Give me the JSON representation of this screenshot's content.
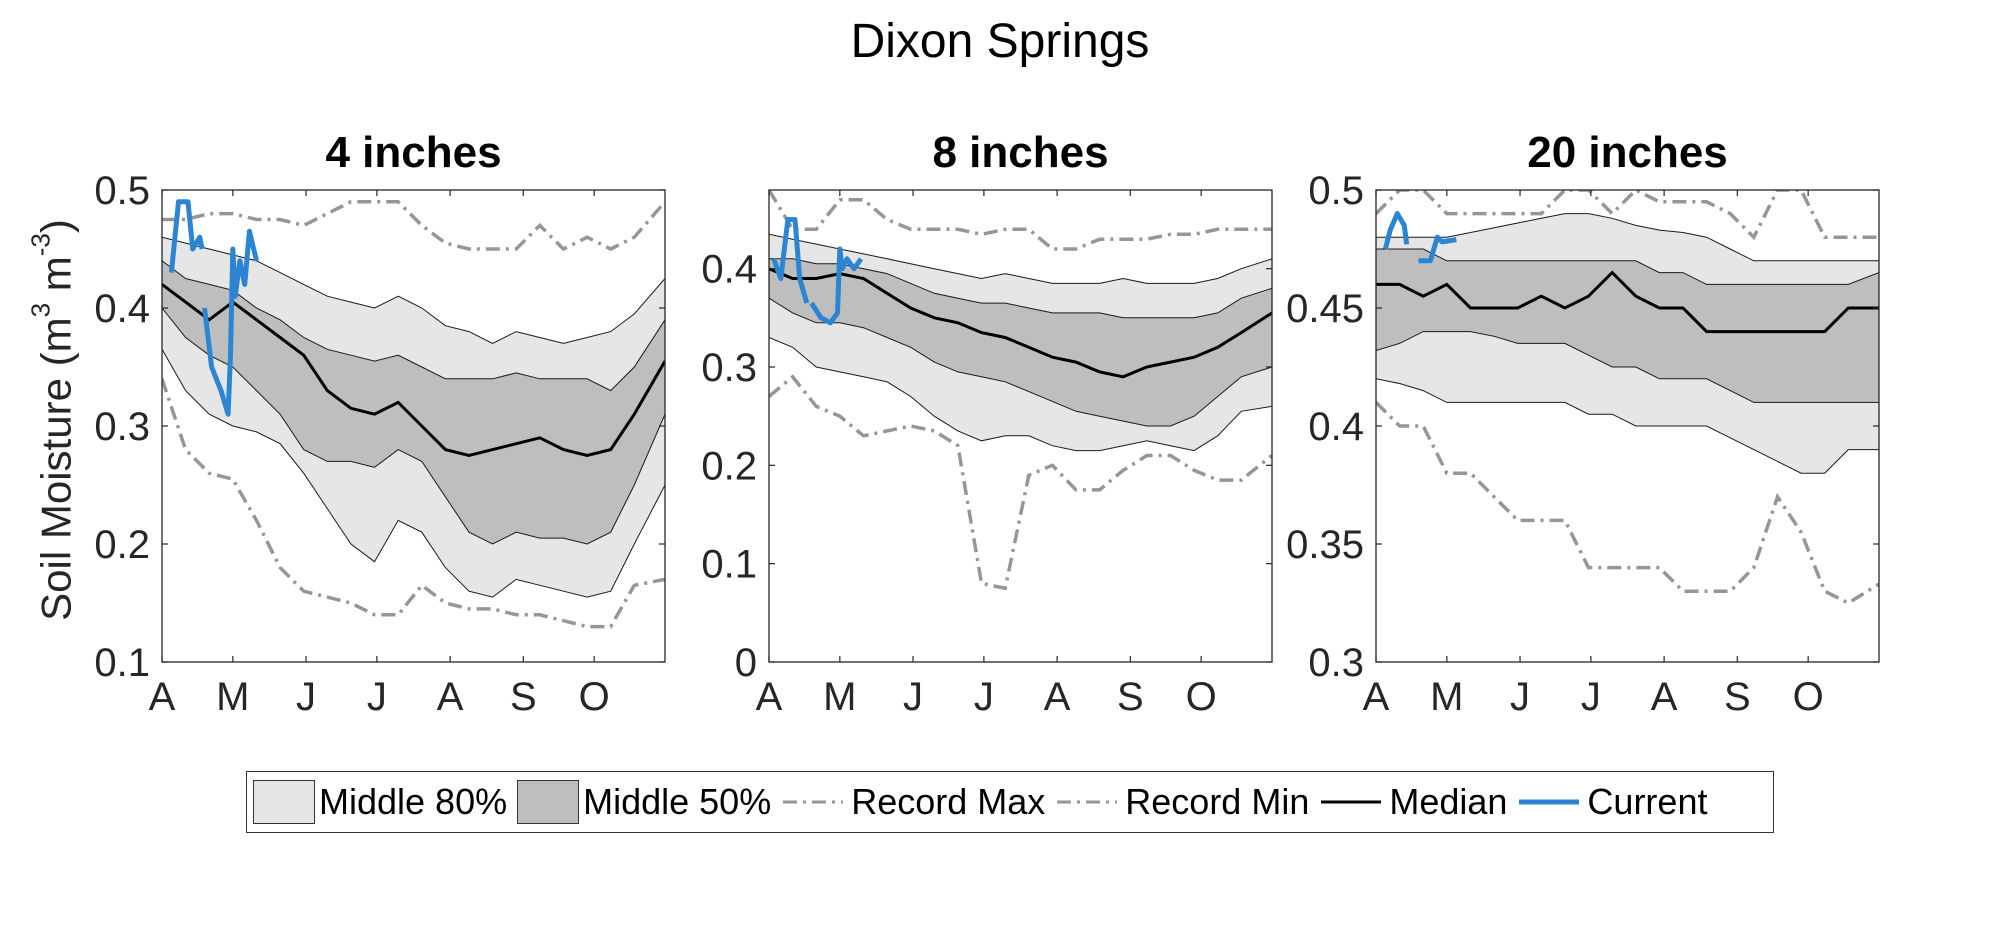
{
  "figure": {
    "title": "Dixon Springs"
  },
  "ylabel": {
    "text": "Soil Moisture (m",
    "sup1": "3",
    "mid": " m",
    "sup2": "-3",
    "end": ")"
  },
  "colors": {
    "p80": "#e6e6e6",
    "p50": "#bebebe",
    "record": "#969696",
    "median": "#000000",
    "current": "#2b85d3",
    "band_edge": "#1a1a1a"
  },
  "legend": [
    {
      "type": "patch",
      "color": "#e6e6e6",
      "label": "Middle 80%"
    },
    {
      "type": "patch",
      "color": "#bebebe",
      "label": "Middle 50%"
    },
    {
      "type": "dashdot",
      "color": "#969696",
      "label": "Record Max"
    },
    {
      "type": "dashdot",
      "color": "#969696",
      "label": "Record Min"
    },
    {
      "type": "line",
      "color": "#000000",
      "label": "Median"
    },
    {
      "type": "line",
      "color": "#2b85d3",
      "label": "Current"
    }
  ],
  "chart_data": [
    {
      "type": "area",
      "title": "4 inches",
      "ylabel": "Soil Moisture (m3 m-3)",
      "x_unit": "day since Apr 1 (Apr 1 - Nov 30)",
      "xlim": [
        0,
        213
      ],
      "ylim": [
        0.1,
        0.5
      ],
      "xticks": [
        0,
        30,
        61,
        91,
        122,
        153,
        183
      ],
      "xticklabels": [
        "A",
        "M",
        "J",
        "J",
        "A",
        "S",
        "O"
      ],
      "yticks": [
        0.1,
        0.2,
        0.3,
        0.4,
        0.5
      ],
      "yticklabels": [
        "0.1",
        "0.2",
        "0.3",
        "0.4",
        "0.5"
      ],
      "x": [
        0,
        10,
        20,
        30,
        40,
        50,
        60,
        70,
        80,
        90,
        100,
        110,
        120,
        130,
        140,
        150,
        160,
        170,
        180,
        190,
        200,
        213
      ],
      "p10": [
        0.365,
        0.33,
        0.31,
        0.3,
        0.295,
        0.285,
        0.26,
        0.23,
        0.2,
        0.185,
        0.22,
        0.21,
        0.18,
        0.16,
        0.155,
        0.17,
        0.165,
        0.16,
        0.155,
        0.16,
        0.2,
        0.25
      ],
      "p25": [
        0.4,
        0.375,
        0.36,
        0.35,
        0.33,
        0.31,
        0.28,
        0.27,
        0.27,
        0.265,
        0.28,
        0.27,
        0.24,
        0.21,
        0.2,
        0.21,
        0.205,
        0.205,
        0.2,
        0.21,
        0.25,
        0.31
      ],
      "p75": [
        0.44,
        0.425,
        0.42,
        0.415,
        0.4,
        0.39,
        0.375,
        0.365,
        0.36,
        0.355,
        0.36,
        0.35,
        0.34,
        0.34,
        0.34,
        0.345,
        0.34,
        0.34,
        0.34,
        0.33,
        0.35,
        0.39
      ],
      "p90": [
        0.46,
        0.455,
        0.45,
        0.445,
        0.44,
        0.43,
        0.42,
        0.41,
        0.405,
        0.4,
        0.41,
        0.4,
        0.385,
        0.38,
        0.37,
        0.38,
        0.375,
        0.37,
        0.375,
        0.38,
        0.395,
        0.425
      ],
      "median": [
        0.42,
        0.405,
        0.39,
        0.405,
        0.39,
        0.375,
        0.36,
        0.33,
        0.315,
        0.31,
        0.32,
        0.3,
        0.28,
        0.275,
        0.28,
        0.285,
        0.29,
        0.28,
        0.275,
        0.28,
        0.31,
        0.355
      ],
      "record_max": [
        0.475,
        0.475,
        0.48,
        0.48,
        0.475,
        0.475,
        0.47,
        0.48,
        0.49,
        0.49,
        0.49,
        0.47,
        0.455,
        0.45,
        0.45,
        0.45,
        0.47,
        0.45,
        0.46,
        0.45,
        0.46,
        0.49
      ],
      "record_min": [
        0.34,
        0.28,
        0.26,
        0.255,
        0.22,
        0.18,
        0.16,
        0.155,
        0.15,
        0.14,
        0.14,
        0.165,
        0.15,
        0.145,
        0.145,
        0.14,
        0.14,
        0.135,
        0.13,
        0.13,
        0.165,
        0.17
      ],
      "current": [
        [
          [
            4,
            0.43
          ],
          [
            7,
            0.49
          ],
          [
            11,
            0.49
          ],
          [
            13,
            0.45
          ],
          [
            16,
            0.46
          ],
          [
            17,
            0.45
          ]
        ],
        [
          [
            18,
            0.4
          ],
          [
            21,
            0.35
          ],
          [
            25,
            0.33
          ],
          [
            28,
            0.31
          ],
          [
            29,
            0.36
          ],
          [
            30,
            0.45
          ],
          [
            31,
            0.41
          ],
          [
            33,
            0.44
          ],
          [
            35,
            0.42
          ],
          [
            37,
            0.465
          ],
          [
            40,
            0.44
          ]
        ]
      ]
    },
    {
      "type": "area",
      "title": "8 inches",
      "x_unit": "day since Apr 1 (Apr 1 - Nov 30)",
      "xlim": [
        0,
        213
      ],
      "ylim": [
        0,
        0.48
      ],
      "xticks": [
        0,
        30,
        61,
        91,
        122,
        153,
        183
      ],
      "xticklabels": [
        "A",
        "M",
        "J",
        "J",
        "A",
        "S",
        "O"
      ],
      "yticks": [
        0,
        0.1,
        0.2,
        0.3,
        0.4
      ],
      "yticklabels": [
        "0",
        "0.1",
        "0.2",
        "0.3",
        "0.4"
      ],
      "x": [
        0,
        10,
        20,
        30,
        40,
        50,
        60,
        70,
        80,
        90,
        100,
        110,
        120,
        130,
        140,
        150,
        160,
        170,
        180,
        190,
        200,
        213
      ],
      "p10": [
        0.33,
        0.32,
        0.3,
        0.295,
        0.29,
        0.285,
        0.27,
        0.25,
        0.235,
        0.225,
        0.23,
        0.23,
        0.22,
        0.215,
        0.215,
        0.22,
        0.225,
        0.22,
        0.215,
        0.23,
        0.255,
        0.26
      ],
      "p25": [
        0.37,
        0.355,
        0.345,
        0.345,
        0.34,
        0.33,
        0.32,
        0.305,
        0.295,
        0.29,
        0.285,
        0.275,
        0.265,
        0.255,
        0.25,
        0.245,
        0.24,
        0.24,
        0.25,
        0.27,
        0.29,
        0.3
      ],
      "p75": [
        0.41,
        0.41,
        0.405,
        0.405,
        0.4,
        0.395,
        0.385,
        0.375,
        0.37,
        0.365,
        0.365,
        0.36,
        0.355,
        0.355,
        0.355,
        0.35,
        0.35,
        0.35,
        0.35,
        0.355,
        0.37,
        0.38
      ],
      "p90": [
        0.435,
        0.43,
        0.425,
        0.42,
        0.415,
        0.41,
        0.405,
        0.4,
        0.395,
        0.39,
        0.395,
        0.39,
        0.385,
        0.385,
        0.385,
        0.39,
        0.385,
        0.385,
        0.385,
        0.39,
        0.4,
        0.41
      ],
      "median": [
        0.4,
        0.39,
        0.39,
        0.395,
        0.39,
        0.375,
        0.36,
        0.35,
        0.345,
        0.335,
        0.33,
        0.32,
        0.31,
        0.305,
        0.295,
        0.29,
        0.3,
        0.305,
        0.31,
        0.32,
        0.335,
        0.355
      ],
      "record_max": [
        0.48,
        0.44,
        0.44,
        0.47,
        0.47,
        0.45,
        0.44,
        0.44,
        0.44,
        0.435,
        0.44,
        0.44,
        0.42,
        0.42,
        0.43,
        0.43,
        0.43,
        0.435,
        0.435,
        0.44,
        0.44,
        0.44
      ],
      "record_min": [
        0.27,
        0.29,
        0.26,
        0.25,
        0.23,
        0.235,
        0.24,
        0.235,
        0.22,
        0.08,
        0.075,
        0.19,
        0.2,
        0.175,
        0.175,
        0.195,
        0.21,
        0.21,
        0.195,
        0.185,
        0.185,
        0.21
      ],
      "current": [
        [
          [
            2,
            0.41
          ],
          [
            5,
            0.39
          ],
          [
            8,
            0.45
          ],
          [
            11,
            0.45
          ],
          [
            13,
            0.39
          ],
          [
            16,
            0.365
          ]
        ],
        [
          [
            18,
            0.365
          ],
          [
            22,
            0.35
          ],
          [
            26,
            0.345
          ],
          [
            29,
            0.355
          ],
          [
            30,
            0.42
          ],
          [
            31,
            0.4
          ],
          [
            33,
            0.41
          ],
          [
            36,
            0.4
          ],
          [
            39,
            0.41
          ]
        ]
      ]
    },
    {
      "type": "area",
      "title": "20 inches",
      "x_unit": "day since Apr 1 (Apr 1 - Nov 30)",
      "xlim": [
        0,
        213
      ],
      "ylim": [
        0.3,
        0.5
      ],
      "xticks": [
        0,
        30,
        61,
        91,
        122,
        153,
        183
      ],
      "xticklabels": [
        "A",
        "M",
        "J",
        "J",
        "A",
        "S",
        "O"
      ],
      "yticks": [
        0.3,
        0.35,
        0.4,
        0.45,
        0.5
      ],
      "yticklabels": [
        "0.3",
        "0.35",
        "0.4",
        "0.45",
        "0.5"
      ],
      "x": [
        0,
        10,
        20,
        30,
        40,
        50,
        60,
        70,
        80,
        90,
        100,
        110,
        120,
        130,
        140,
        150,
        160,
        170,
        180,
        190,
        200,
        213
      ],
      "p10": [
        0.42,
        0.418,
        0.415,
        0.41,
        0.41,
        0.41,
        0.41,
        0.41,
        0.41,
        0.405,
        0.405,
        0.4,
        0.4,
        0.4,
        0.4,
        0.395,
        0.39,
        0.385,
        0.38,
        0.38,
        0.39,
        0.39
      ],
      "p25": [
        0.432,
        0.435,
        0.44,
        0.44,
        0.44,
        0.438,
        0.435,
        0.435,
        0.435,
        0.43,
        0.425,
        0.425,
        0.42,
        0.42,
        0.42,
        0.415,
        0.41,
        0.41,
        0.41,
        0.41,
        0.41,
        0.41
      ],
      "p75": [
        0.475,
        0.475,
        0.475,
        0.47,
        0.47,
        0.47,
        0.47,
        0.47,
        0.47,
        0.47,
        0.47,
        0.47,
        0.465,
        0.465,
        0.46,
        0.46,
        0.46,
        0.46,
        0.46,
        0.46,
        0.46,
        0.465
      ],
      "p90": [
        0.48,
        0.48,
        0.48,
        0.48,
        0.482,
        0.484,
        0.486,
        0.488,
        0.49,
        0.49,
        0.488,
        0.485,
        0.483,
        0.482,
        0.48,
        0.475,
        0.47,
        0.47,
        0.47,
        0.47,
        0.47,
        0.47
      ],
      "median": [
        0.46,
        0.46,
        0.455,
        0.46,
        0.45,
        0.45,
        0.45,
        0.455,
        0.45,
        0.455,
        0.465,
        0.455,
        0.45,
        0.45,
        0.44,
        0.44,
        0.44,
        0.44,
        0.44,
        0.44,
        0.45,
        0.45
      ],
      "record_max": [
        0.49,
        0.5,
        0.5,
        0.49,
        0.49,
        0.49,
        0.49,
        0.49,
        0.5,
        0.5,
        0.49,
        0.5,
        0.495,
        0.495,
        0.495,
        0.49,
        0.48,
        0.5,
        0.5,
        0.48,
        0.48,
        0.48
      ],
      "record_min": [
        0.41,
        0.4,
        0.4,
        0.38,
        0.38,
        0.37,
        0.36,
        0.36,
        0.36,
        0.34,
        0.34,
        0.34,
        0.34,
        0.33,
        0.33,
        0.33,
        0.34,
        0.37,
        0.355,
        0.33,
        0.325,
        0.333
      ],
      "current": [
        [
          [
            4,
            0.475
          ],
          [
            6,
            0.483
          ],
          [
            9,
            0.49
          ],
          [
            12,
            0.485
          ],
          [
            13,
            0.477
          ]
        ],
        [
          [
            18,
            0.47
          ],
          [
            23,
            0.47
          ],
          [
            26,
            0.48
          ],
          [
            28,
            0.478
          ],
          [
            34,
            0.479
          ]
        ]
      ]
    }
  ]
}
